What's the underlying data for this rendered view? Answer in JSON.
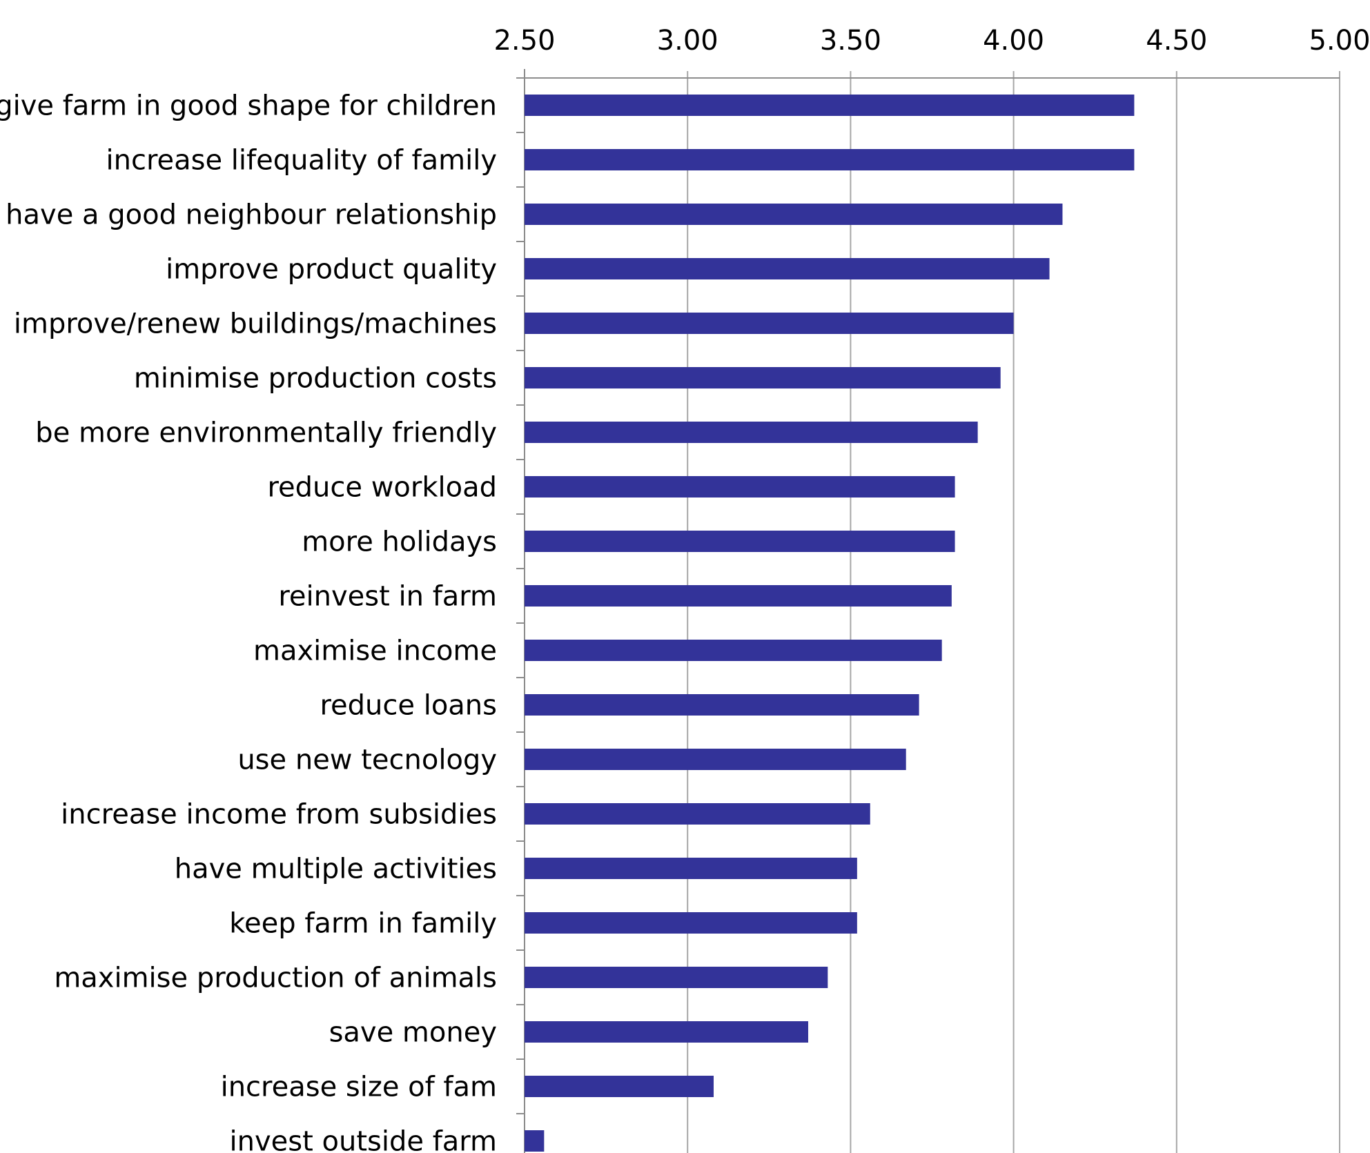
{
  "chart_data": {
    "type": "bar",
    "orientation": "horizontal",
    "categories": [
      "give farm in good shape for children",
      "increase lifequality of family",
      "have a good neighbour relationship",
      "improve product quality",
      "improve/renew buildings/machines",
      "minimise production costs",
      "be more environmentally friendly",
      "reduce workload",
      "more holidays",
      "reinvest in farm",
      "maximise income",
      "reduce loans",
      "use new tecnology",
      "increase income from subsidies",
      "have multiple activities",
      "keep farm in family",
      "maximise production of animals",
      "save money",
      "increase size of fam",
      "invest outside farm"
    ],
    "values": [
      4.37,
      4.37,
      4.15,
      4.11,
      4.0,
      3.96,
      3.89,
      3.82,
      3.82,
      3.81,
      3.78,
      3.71,
      3.67,
      3.56,
      3.52,
      3.52,
      3.43,
      3.37,
      3.08,
      2.56
    ],
    "xlim": [
      2.5,
      5.0
    ],
    "ticks": [
      "2.50",
      "3.00",
      "3.50",
      "4.00",
      "4.50",
      "5.00"
    ],
    "tick_values": [
      2.5,
      3.0,
      3.5,
      4.0,
      4.5,
      5.0
    ],
    "axis_position": "top",
    "grid": true,
    "bar_color": "#333399",
    "title": "",
    "xlabel": "",
    "ylabel": ""
  }
}
